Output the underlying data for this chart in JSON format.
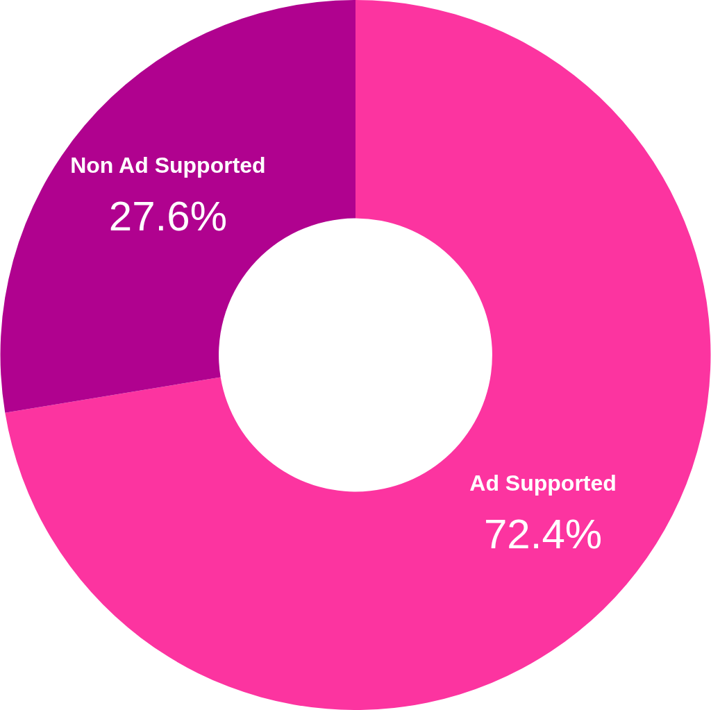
{
  "chart_data": {
    "type": "donut",
    "categories": [
      "Ad Supported",
      "Non Ad Supported"
    ],
    "values": [
      72.4,
      27.6
    ],
    "colors": [
      "#fc34a0",
      "#b0028f"
    ],
    "value_labels": [
      "72.4%",
      "27.6%"
    ],
    "legend": false
  }
}
